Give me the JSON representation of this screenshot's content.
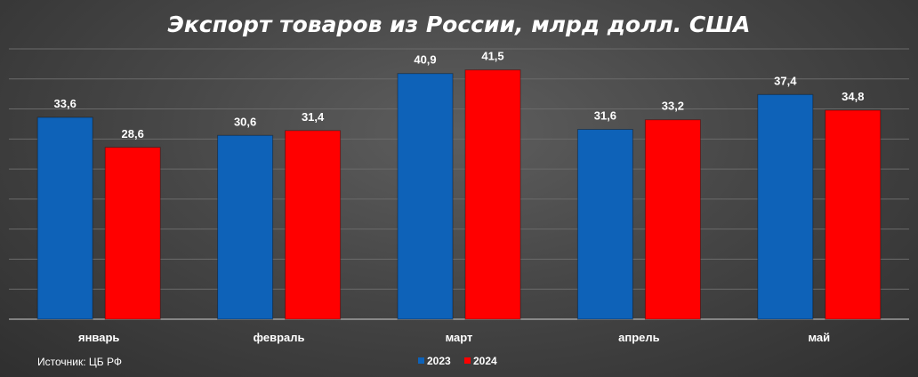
{
  "chart_data": {
    "type": "bar",
    "title": "Экспорт товаров из России, млрд долл. США",
    "categories": [
      "январь",
      "февраль",
      "март",
      "апрель",
      "май"
    ],
    "series": [
      {
        "name": "2023",
        "color": "#0e62b8",
        "values": [
          33.6,
          30.6,
          40.9,
          31.6,
          37.4
        ],
        "labels": [
          "33,6",
          "30,6",
          "40,9",
          "31,6",
          "37,4"
        ]
      },
      {
        "name": "2024",
        "color": "#ff0000",
        "values": [
          28.6,
          31.4,
          41.5,
          33.2,
          34.8
        ],
        "labels": [
          "28,6",
          "31,4",
          "41,5",
          "33,2",
          "34,8"
        ]
      }
    ],
    "ylim": [
      0,
      45
    ],
    "grid": true,
    "legend": "bottom-center",
    "source_note": "Источник: ЦБ РФ"
  }
}
